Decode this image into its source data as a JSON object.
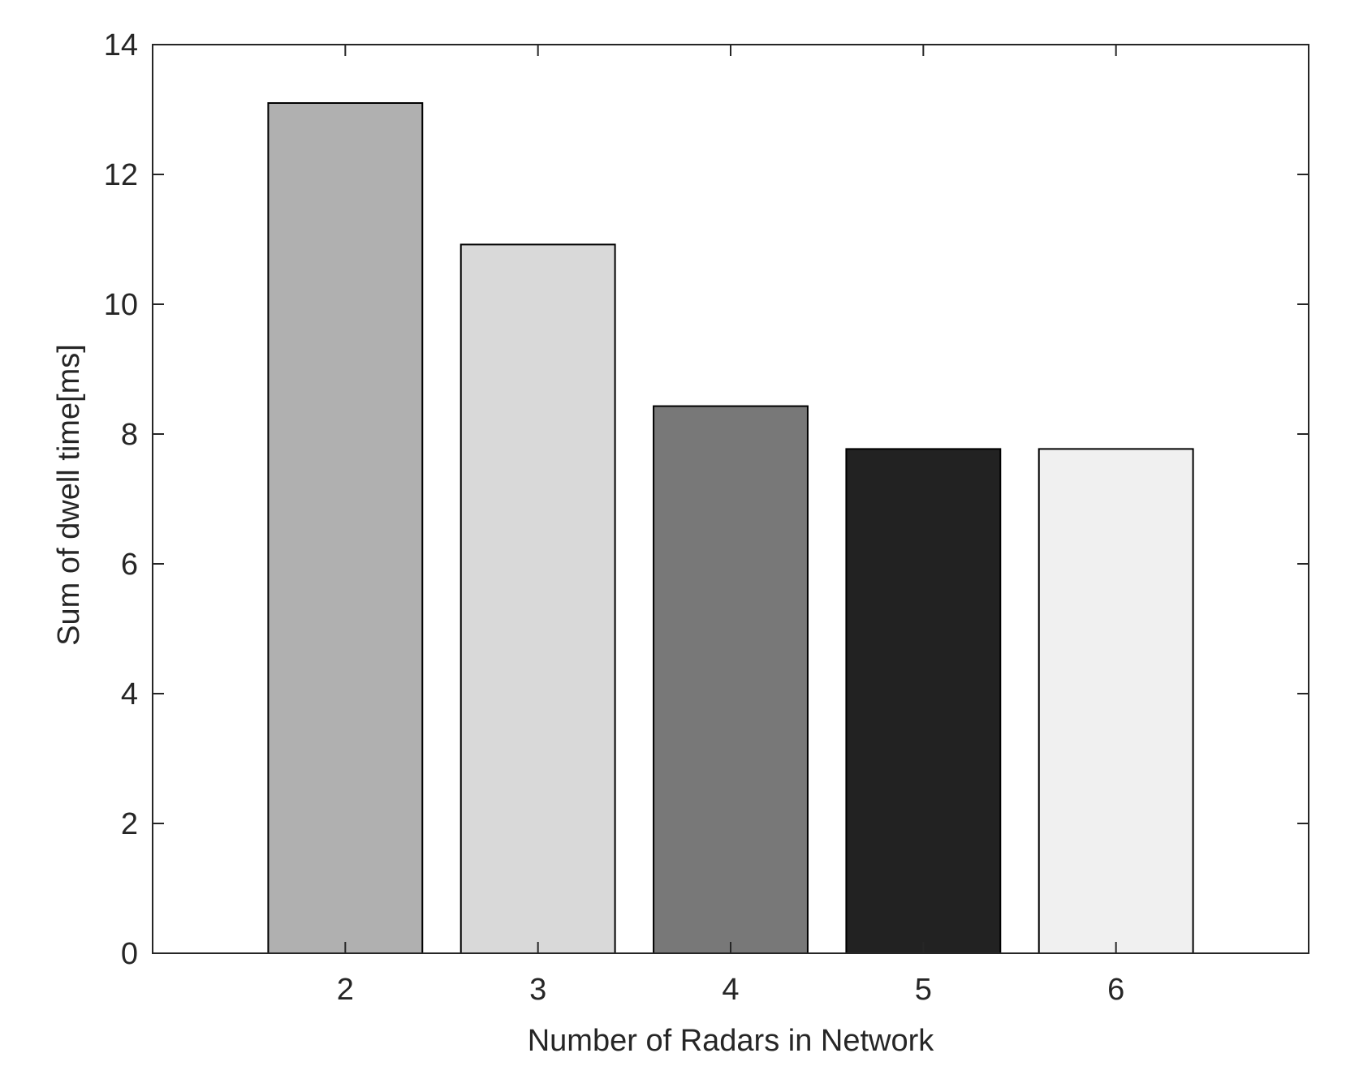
{
  "chart_data": {
    "type": "bar",
    "title": "",
    "xlabel": "Number of Radars in Network",
    "ylabel": "Sum of dwell time[ms]",
    "categories": [
      "2",
      "3",
      "4",
      "5",
      "6"
    ],
    "values": [
      13.1,
      10.92,
      8.43,
      7.77,
      7.77
    ],
    "bar_colors": [
      "#b0b0b0",
      "#d9d9d9",
      "#787878",
      "#222222",
      "#f0f0f0"
    ],
    "xlim": [
      1,
      7
    ],
    "ylim": [
      0,
      14
    ],
    "yticks": [
      0,
      2,
      4,
      6,
      8,
      10,
      12,
      14
    ],
    "ytick_labels": [
      "0",
      "2",
      "4",
      "6",
      "8",
      "10",
      "12",
      "14"
    ],
    "grid": false,
    "legend": false,
    "box": true
  }
}
